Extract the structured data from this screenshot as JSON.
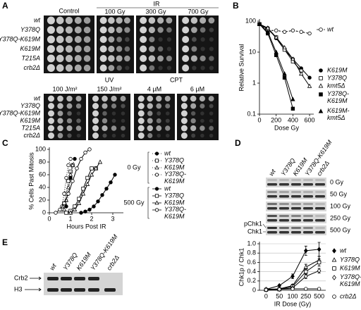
{
  "panel_a": {
    "label": "A",
    "control": "Control",
    "ir": "IR",
    "ir_doses": [
      "100 Gy",
      "300 Gy",
      "700 Gy"
    ],
    "uv": "UV",
    "uv_doses": [
      "100 J/m²",
      "150 J/m²"
    ],
    "cpt": "CPT",
    "cpt_doses": [
      "4 µM",
      "6 µM"
    ],
    "strains_top": [
      "wt",
      "Y378Q",
      "Y378Q-K619M",
      "K619M",
      "T215A",
      "crb2Δ"
    ],
    "strains_bottom": [
      "wt",
      "Y378Q",
      "Y378Q-K619M",
      "K619M",
      "T215A",
      "crb2Δ"
    ]
  },
  "chart_data": [
    {
      "label": "B",
      "type": "line",
      "log_y": true,
      "y_label": "Relative Survival",
      "x_label": "Dose Gy",
      "x": [
        0,
        100,
        200,
        300,
        400,
        500,
        600
      ],
      "xlim": [
        0,
        650
      ],
      "xticks": [
        0,
        200,
        400,
        600
      ],
      "ylim": [
        0.1,
        100
      ],
      "yticks": [
        0.1,
        1,
        10,
        100
      ],
      "series": [
        {
          "name": "wt",
          "color": "#000000",
          "marker": "circle",
          "filled": false,
          "dash": "3,2",
          "values": [
            80,
            50,
            50,
            45,
            50,
            45,
            40
          ]
        },
        {
          "name": "K619M",
          "color": "#000000",
          "marker": "circle",
          "filled": true,
          "values": [
            80,
            60,
            28,
            12,
            6,
            3,
            1.5
          ]
        },
        {
          "name": "Y378Q",
          "color": "#000000",
          "marker": "square",
          "filled": false,
          "values": [
            80,
            55,
            30,
            12,
            5,
            2.5,
            null
          ]
        },
        {
          "name": "kmt5Δ",
          "color": "#000000",
          "marker": "triangle",
          "filled": false,
          "values": [
            80,
            60,
            30,
            14,
            6,
            2,
            0.8
          ]
        },
        {
          "name": "Y378Q-K619M",
          "color": "#000000",
          "marker": "square",
          "filled": true,
          "values": [
            80,
            40,
            8,
            1.5,
            0.15,
            null,
            null
          ]
        },
        {
          "name": "K619M-kmt5Δ",
          "color": "#000000",
          "marker": "triangle",
          "filled": true,
          "values": [
            80,
            45,
            10,
            2,
            0.3,
            null,
            null
          ]
        }
      ]
    },
    {
      "label": "C",
      "type": "line",
      "y_label": "% Cells Past Mitosis",
      "x_label": "Hours Post IR",
      "xlim": [
        0,
        3.5
      ],
      "xticks": [
        0,
        1,
        2,
        3
      ],
      "ylim": [
        0,
        100
      ],
      "yticks": [
        0,
        20,
        40,
        60,
        80,
        100
      ],
      "groups": [
        "0 Gy",
        "500 Gy"
      ],
      "series": [
        {
          "name": "wt",
          "group": 0,
          "color": "#000000",
          "marker": "circle",
          "filled": true,
          "dash": "1,2",
          "x": [
            0.8,
            0.9,
            1.0,
            1.1,
            1.2
          ],
          "values": [
            10,
            30,
            55,
            75,
            85
          ]
        },
        {
          "name": "Y378Q",
          "group": 0,
          "color": "#000000",
          "marker": "square",
          "filled": false,
          "dash": "1,2",
          "x": [
            0.6,
            0.7,
            0.8,
            0.9,
            1.0,
            1.1
          ],
          "values": [
            5,
            15,
            30,
            50,
            65,
            75
          ]
        },
        {
          "name": "K619M",
          "group": 0,
          "color": "#000000",
          "marker": "triangle",
          "filled": false,
          "dash": "1,2",
          "x": [
            0.7,
            0.8,
            0.9,
            1.0,
            1.1
          ],
          "values": [
            5,
            20,
            40,
            60,
            75
          ]
        },
        {
          "name": "Y378Q-K619M",
          "group": 0,
          "color": "#000000",
          "marker": "circle",
          "filled": false,
          "dash": "1,2",
          "x": [
            0.6,
            0.7,
            0.8,
            0.9,
            1.0
          ],
          "values": [
            10,
            30,
            55,
            75,
            85
          ]
        },
        {
          "name": "wt",
          "group": 1,
          "color": "#000000",
          "marker": "circle",
          "filled": true,
          "x": [
            1.5,
            1.7,
            1.9,
            2.1,
            2.3,
            2.5,
            2.7,
            2.9,
            3.1
          ],
          "values": [
            0,
            2,
            5,
            10,
            18,
            28,
            38,
            48,
            60
          ]
        },
        {
          "name": "Y378Q",
          "group": 1,
          "color": "#000000",
          "marker": "square",
          "filled": false,
          "x": [
            0.8,
            1.0,
            1.2,
            1.4,
            1.6,
            1.8,
            2.0,
            2.2
          ],
          "values": [
            0,
            3,
            10,
            22,
            38,
            55,
            70,
            70
          ]
        },
        {
          "name": "K619M",
          "group": 1,
          "color": "#000000",
          "marker": "triangle",
          "filled": false,
          "x": [
            1.0,
            1.2,
            1.4,
            1.6,
            1.8,
            2.0,
            2.2,
            2.4
          ],
          "values": [
            0,
            5,
            15,
            30,
            45,
            60,
            70,
            80
          ]
        },
        {
          "name": "Y378Q-K619M",
          "group": 1,
          "color": "#000000",
          "marker": "circle",
          "filled": false,
          "x": [
            0.3,
            0.5,
            0.7,
            0.9,
            1.1,
            1.3,
            1.5,
            1.7,
            1.9
          ],
          "values": [
            0,
            5,
            15,
            30,
            50,
            70,
            85,
            95,
            100
          ]
        }
      ]
    },
    {
      "label": "D",
      "type": "line",
      "y_label": "Chk1p / Chk1",
      "x_label": "IR Dose (Gy)",
      "categories": [
        "0",
        "50",
        "100",
        "250",
        "500"
      ],
      "ylim": [
        0,
        1
      ],
      "yticks": [
        0,
        0.2,
        0.4,
        0.6,
        0.8,
        {
          "value": 1,
          "label": "1.0"
        }
      ],
      "grid": true,
      "series": [
        {
          "name": "wt",
          "color": "#000000",
          "marker": "diamond",
          "filled": true,
          "values": [
            0.02,
            0.1,
            0.3,
            0.85,
            0.88
          ],
          "errors": [
            0.01,
            0.02,
            0.05,
            0.1,
            0.15
          ]
        },
        {
          "name": "Y378Q",
          "color": "#000000",
          "marker": "triangle",
          "filled": false,
          "values": [
            0.02,
            0.03,
            0.1,
            0.5,
            0.65
          ],
          "errors": [
            0.01,
            0.01,
            0.03,
            0.06,
            0.08
          ]
        },
        {
          "name": "K619M",
          "color": "#000000",
          "marker": "square",
          "filled": false,
          "values": [
            0.01,
            0.02,
            0.08,
            0.4,
            0.6
          ],
          "errors": [
            0.01,
            0.01,
            0.03,
            0.06,
            0.08
          ]
        },
        {
          "name": "Y378Q-K619M",
          "color": "#000000",
          "marker": "diamond",
          "filled": false,
          "values": [
            0.01,
            0.02,
            0.05,
            0.3,
            0.42
          ],
          "errors": [
            0.01,
            0.01,
            0.02,
            0.05,
            0.05
          ]
        },
        {
          "name": "crb2Δ",
          "color": "#000000",
          "marker": "circle",
          "filled": false,
          "values": [
            0.01,
            0.02,
            0.03,
            0.03,
            0.03
          ],
          "errors": [
            0.01,
            0.01,
            0.01,
            0.01,
            0.01
          ]
        }
      ]
    }
  ],
  "panel_d_blot": {
    "strains": [
      "wt",
      "Y378Q",
      "K619M",
      "Y378Q-K619M",
      "crb2Δ"
    ],
    "doses": [
      "0 Gy",
      "50 Gy",
      "100 Gy",
      "250 Gy",
      "500 Gy"
    ],
    "bands": [
      "pChk1",
      "Chk1"
    ]
  },
  "panel_e": {
    "label": "E",
    "strains": [
      "wt",
      "Y378Q",
      "K619M",
      "Y378Q-K619M",
      "crb2Δ"
    ],
    "proteins": [
      "Crb2",
      "H3"
    ]
  }
}
